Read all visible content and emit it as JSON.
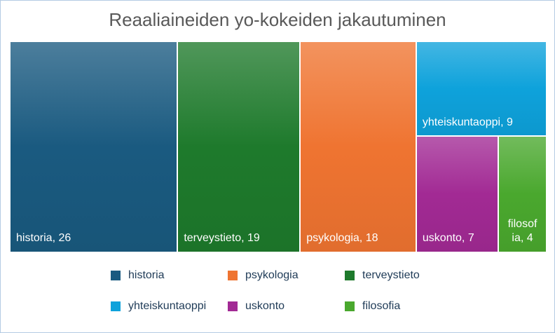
{
  "chart_data": {
    "type": "treemap",
    "title": "Reaaliaineiden yo-kokeiden jakautuminen",
    "categories": [
      "historia",
      "terveystieto",
      "psykologia",
      "yhteiskuntaoppi",
      "uskonto",
      "filosofia"
    ],
    "values": [
      26,
      19,
      18,
      9,
      7,
      4
    ],
    "labels": [
      "historia, 26",
      "terveystieto, 19",
      "psykologia, 18",
      "yhteiskuntaoppi, 9",
      "uskonto, 7",
      "filosof ia, 4"
    ],
    "colors": [
      "#1a5a80",
      "#1e7a2c",
      "#ef7431",
      "#0ea2db",
      "#a22a94",
      "#4aa82e"
    ],
    "legend_position": "bottom",
    "legend": [
      "historia",
      "psykologia",
      "terveystieto",
      "yhteiskuntaoppi",
      "uskonto",
      "filosofia"
    ],
    "legend_colors": [
      "#1a5a80",
      "#ef7431",
      "#1e7a2c",
      "#0ea2db",
      "#a22a94",
      "#4aa82e"
    ]
  }
}
